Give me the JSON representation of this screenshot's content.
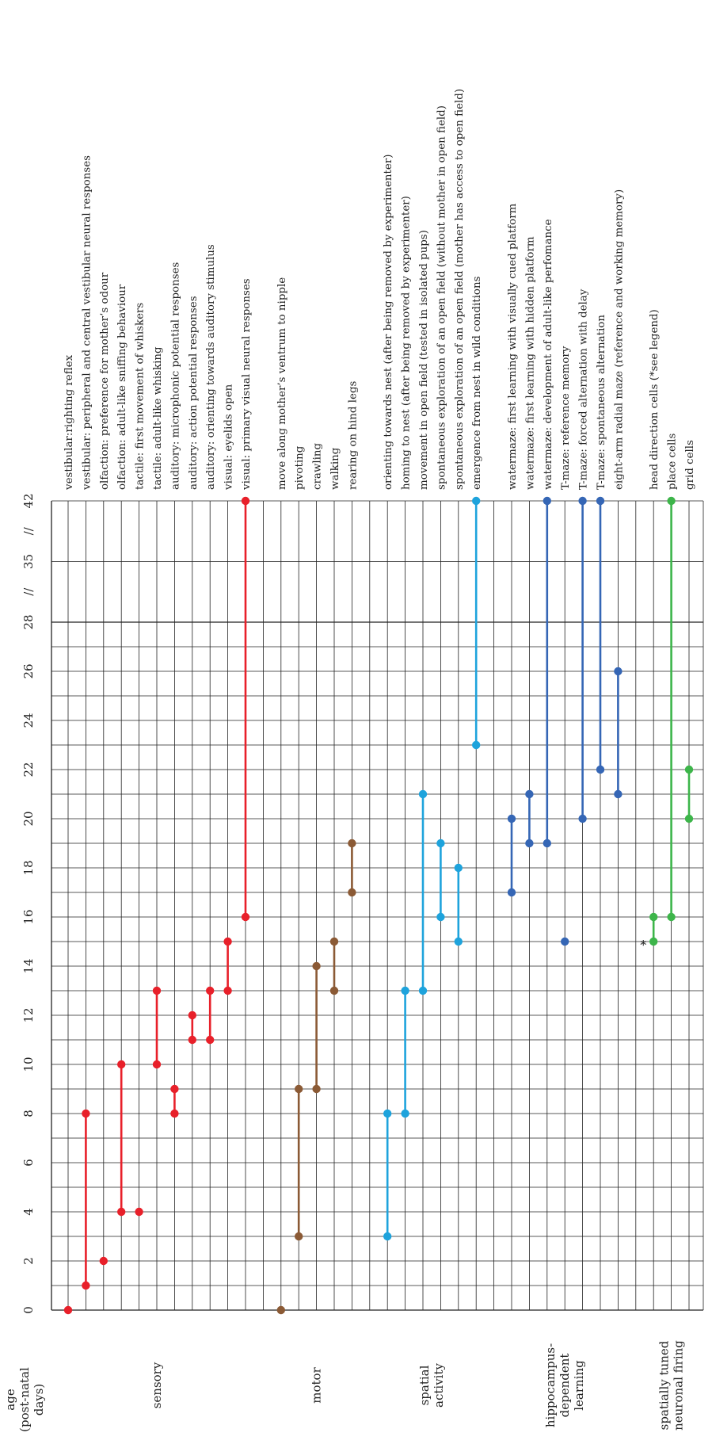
{
  "chart_data": {
    "type": "timeline",
    "axis_label": "age\n(post-natal\ndays)",
    "ticks": [
      "0",
      "2",
      "4",
      "6",
      "8",
      "10",
      "12",
      "14",
      "16",
      "18",
      "20",
      "22",
      "24",
      "26",
      "28",
      "//",
      "35",
      "//",
      "42"
    ],
    "groups": [
      {
        "name": "sensory",
        "color": "#e8202a",
        "items": [
          {
            "label": "vestibular:righting reflex",
            "start": 0,
            "end": 0
          },
          {
            "label": "vestibular: peripheral and central vestibular neural responses",
            "start": 1,
            "end": 8
          },
          {
            "label": "olfaction: preference for mother’s odour",
            "start": 2,
            "end": 2
          },
          {
            "label": "olfaction: adult-like sniffing behaviour",
            "start": 4,
            "end": 10
          },
          {
            "label": "tactile: first movement of whiskers",
            "start": 4,
            "end": 4
          },
          {
            "label": "tactile: adult-like whisking",
            "start": 10,
            "end": 13
          },
          {
            "label": "auditory: microphonic potential responses",
            "start": 8,
            "end": 9
          },
          {
            "label": "auditory: action potential responses",
            "start": 11,
            "end": 12
          },
          {
            "label": "auditory: orienting towards auditory stimulus",
            "start": 11,
            "end": 13
          },
          {
            "label": "visual: eyelids open",
            "start": 13,
            "end": 15
          },
          {
            "label": "visual: primary visual neural responses",
            "start": 16,
            "end": 42
          }
        ]
      },
      {
        "name": "motor",
        "color": "#8b5a35",
        "items": [
          {
            "label": "move along mother’s ventrum to nipple",
            "start": 0,
            "end": 0
          },
          {
            "label": "pivoting",
            "start": 3,
            "end": 9
          },
          {
            "label": "crawling",
            "start": 9,
            "end": 14
          },
          {
            "label": "walking",
            "start": 13,
            "end": 15
          },
          {
            "label": "rearing on hind legs",
            "start": 17,
            "end": 19
          }
        ]
      },
      {
        "name": "spatial\nactivity",
        "color": "#1ea3dc",
        "items": [
          {
            "label": "orienting towards nest (after being removed by experimenter)",
            "start": 3,
            "end": 8
          },
          {
            "label": "homing to nest (after being removed by experimenter)",
            "start": 8,
            "end": 13
          },
          {
            "label": "movement in open field (tested in isolated pups)",
            "start": 13,
            "end": 21
          },
          {
            "label": "spontaneous exploration of an open field (without mother in open field)",
            "start": 16,
            "end": 19
          },
          {
            "label": "spontaneous exploration of an open field (mother has access to open field)",
            "start": 15,
            "end": 18
          },
          {
            "label": "emergence from nest in wild conditions",
            "start": 23,
            "end": 42
          }
        ]
      },
      {
        "name": "hippocampus-\ndependent\nlearning",
        "color": "#3566b5",
        "items": [
          {
            "label": "watermaze: first learning with visually cued platform",
            "start": 17,
            "end": 20
          },
          {
            "label": "watermaze: first learning with hidden platform",
            "start": 19,
            "end": 21
          },
          {
            "label": "watermaze: development of adult-like perfomance",
            "start": 19,
            "end": 42
          },
          {
            "label": "T-maze: reference memory",
            "start": 15,
            "end": 15
          },
          {
            "label": "T-maze: forced alternation with delay",
            "start": 20,
            "end": 42
          },
          {
            "label": "T-maze: spontaneous alternation",
            "start": 22,
            "end": 42
          },
          {
            "label": "eight-arm radial maze (reference and working memory)",
            "start": 21,
            "end": 26
          }
        ]
      },
      {
        "name": "spatially tuned\nneuronal firing",
        "color": "#3db54a",
        "items": [
          {
            "label": "head direction cells (*see legend)",
            "start": 15,
            "end": 16,
            "marker": "*"
          },
          {
            "label": "place cells",
            "start": 16,
            "end": 42
          },
          {
            "label": "grid cells",
            "start": 20,
            "end": 22
          }
        ]
      }
    ]
  }
}
